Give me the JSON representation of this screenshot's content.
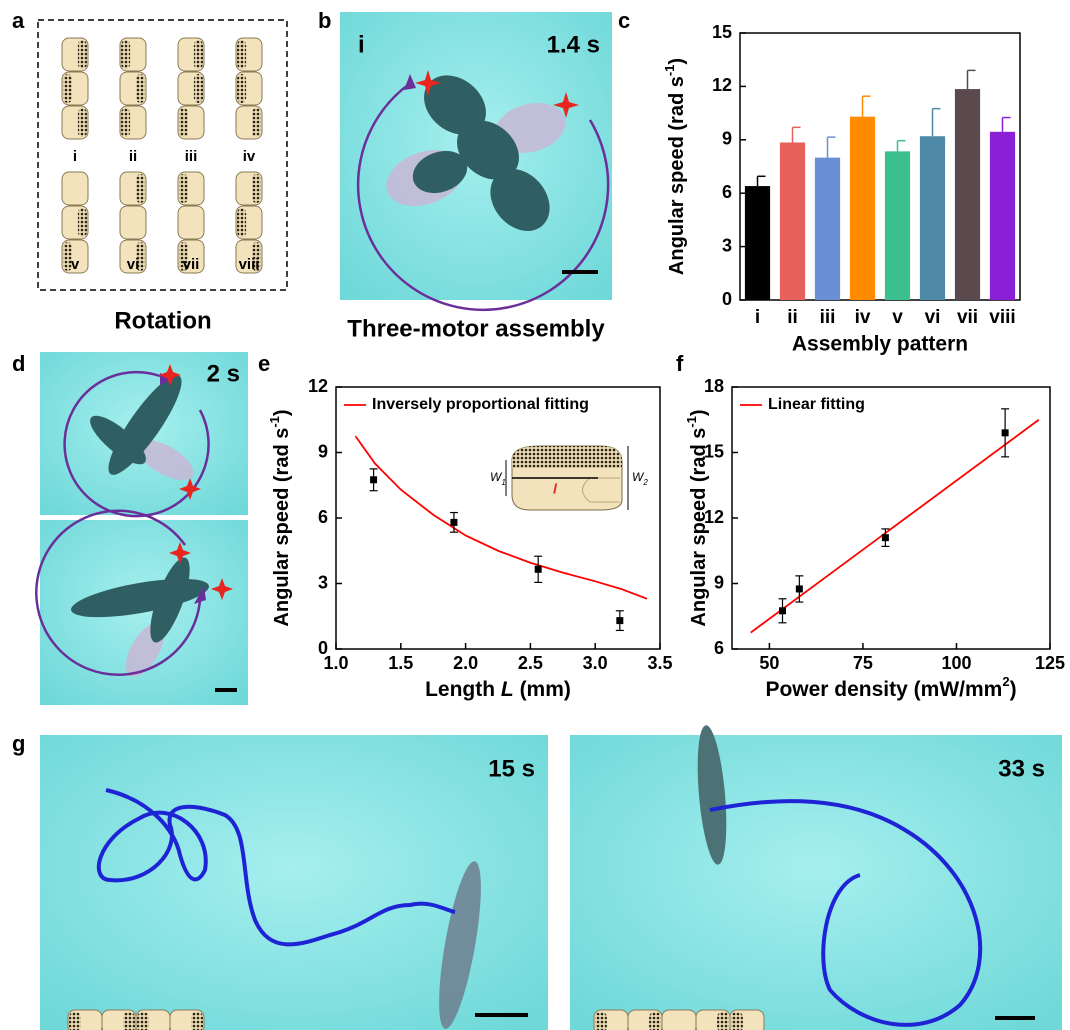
{
  "panel_labels": [
    "a",
    "b",
    "c",
    "d",
    "e",
    "f",
    "g"
  ],
  "panel_a": {
    "labels": [
      "i",
      "ii",
      "iii",
      "iv",
      "v",
      "vi",
      "vii",
      "viii"
    ],
    "caption": "Rotation"
  },
  "panel_b": {
    "label": "i",
    "time": "1.4 s",
    "caption": "Three-motor assembly"
  },
  "panel_d": {
    "time": "2 s"
  },
  "panel_g": {
    "times": [
      "15 s",
      "33 s"
    ]
  },
  "inset": {
    "w1": [
      "W",
      "1"
    ],
    "l": "l",
    "w2": [
      "W",
      "2"
    ]
  },
  "chart_data": [
    {
      "type": "bar",
      "categories": [
        "i",
        "ii",
        "iii",
        "iv",
        "v",
        "vi",
        "vii",
        "viii"
      ],
      "values": [
        6.4,
        8.85,
        8.0,
        10.3,
        8.35,
        9.2,
        11.85,
        9.45
      ],
      "errors": [
        0.55,
        0.85,
        1.15,
        1.15,
        0.6,
        1.55,
        1.05,
        0.8
      ],
      "colors": [
        "#000000",
        "#e8605a",
        "#6b8fd6",
        "#ff8c00",
        "#3cbf8f",
        "#4e8aa8",
        "#5a4a4e",
        "#8a1fd6"
      ],
      "xlabel": "Assembly pattern",
      "ylabel_parts": [
        "Angular speed (rad s",
        "-1",
        ")"
      ],
      "ylim": [
        0,
        15
      ],
      "yticks": [
        0,
        3,
        6,
        9,
        12,
        15
      ]
    },
    {
      "type": "scatter",
      "points": {
        "x": [
          1.29,
          1.91,
          2.56,
          3.19
        ],
        "values": [
          7.75,
          5.8,
          3.65,
          1.3
        ],
        "errors": [
          0.5,
          0.45,
          0.6,
          0.45
        ],
        "color": "#000000"
      },
      "series": [
        {
          "name": "Inversely proportional fitting",
          "color": "#ff0000",
          "x": [
            1.15,
            1.3,
            1.5,
            1.75,
            2.0,
            2.25,
            2.5,
            2.75,
            3.0,
            3.2,
            3.4
          ],
          "values": [
            9.75,
            8.5,
            7.3,
            6.15,
            5.2,
            4.5,
            3.95,
            3.5,
            3.1,
            2.75,
            2.3
          ]
        }
      ],
      "xlabel_parts": [
        "Length ",
        "L",
        " (mm)"
      ],
      "ylabel_parts": [
        "Angular speed (rad s",
        "-1",
        ")"
      ],
      "xlim": [
        1.0,
        3.5
      ],
      "xticks": [
        {
          "value": 1.0,
          "label": "1.0"
        },
        1.5,
        {
          "value": 2.0,
          "label": "2.0"
        },
        2.5,
        {
          "value": 3.0,
          "label": "3.0"
        },
        3.5
      ],
      "ylim": [
        0,
        12
      ],
      "yticks": [
        0,
        3,
        6,
        9,
        12
      ]
    },
    {
      "type": "scatter",
      "points": {
        "x": [
          53.5,
          58,
          81,
          113
        ],
        "values": [
          7.75,
          8.75,
          11.1,
          15.9
        ],
        "errors": [
          0.55,
          0.6,
          0.4,
          1.1
        ],
        "color": "#000000"
      },
      "series": [
        {
          "name": "Linear fitting",
          "color": "#ff0000",
          "x": [
            45,
            122
          ],
          "values": [
            6.75,
            16.5
          ]
        }
      ],
      "xlabel_parts": [
        "Power density (mW/mm",
        "2",
        ")"
      ],
      "ylabel_parts": [
        "Angular speed (rad s",
        "-1",
        ")"
      ],
      "xlim": [
        40,
        125
      ],
      "xticks": [
        50,
        75,
        100,
        125
      ],
      "ylim": [
        6,
        18
      ],
      "yticks": [
        6,
        9,
        12,
        15,
        18
      ]
    }
  ]
}
